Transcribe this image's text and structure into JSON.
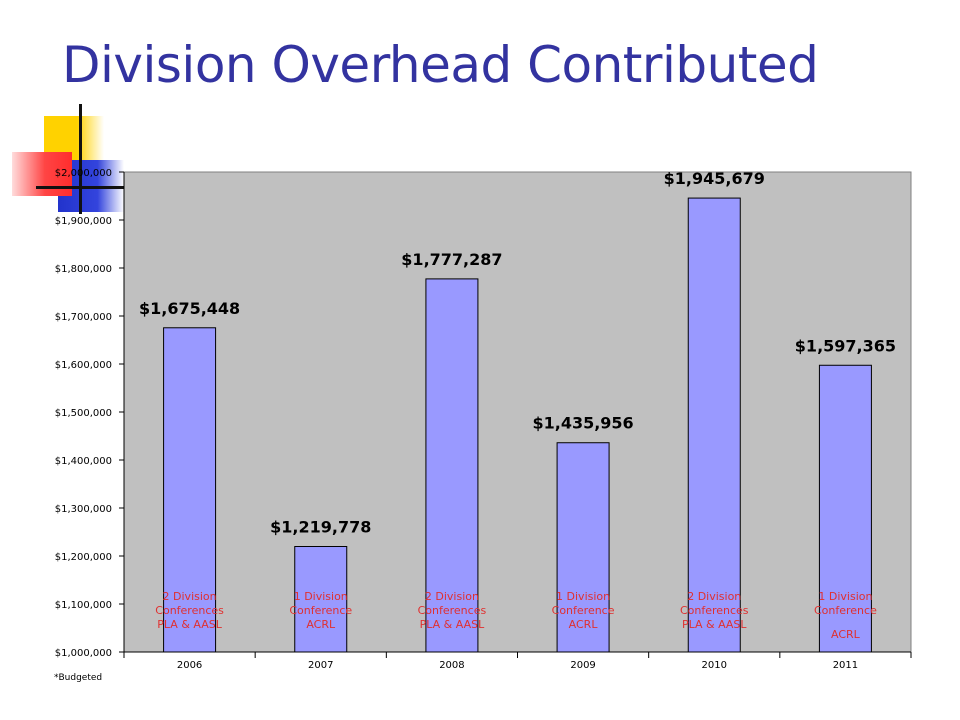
{
  "slide": {
    "title": "Division Overhead Contributed",
    "footnote": "*Budgeted"
  },
  "chart_data": {
    "type": "bar",
    "categories": [
      "2006",
      "2007",
      "2008",
      "2009",
      "2010",
      "2011"
    ],
    "values": [
      1675448,
      1219778,
      1777287,
      1435956,
      1945679,
      1597365
    ],
    "data_labels": [
      "$1,675,448",
      "$1,219,778",
      "$1,777,287",
      "$1,435,956",
      "$1,945,679",
      "$1,597,365"
    ],
    "annotations": [
      [
        "2 Division",
        "Conferences",
        "PLA & AASL"
      ],
      [
        "1 Division",
        "Conference",
        "ACRL"
      ],
      [
        "2 Division",
        "Conferences",
        "PLA & AASL"
      ],
      [
        "1 Division",
        "Conference",
        "ACRL"
      ],
      [
        "2 Division",
        "Conferences",
        "PLA & AASL"
      ],
      [
        "1 Division",
        "Conference",
        "ACRL"
      ]
    ],
    "ylim": [
      1000000,
      2000000
    ],
    "yticks": [
      1000000,
      1100000,
      1200000,
      1300000,
      1400000,
      1500000,
      1600000,
      1700000,
      1800000,
      1900000,
      2000000
    ],
    "ytick_labels": [
      "$1,000,000",
      "$1,100,000",
      "$1,200,000",
      "$1,300,000",
      "$1,400,000",
      "$1,500,000",
      "$1,600,000",
      "$1,700,000",
      "$1,800,000",
      "$1,900,000",
      "$2,000,000"
    ],
    "xlabel": "",
    "ylabel": "",
    "grid": false,
    "legend": "none",
    "colors": {
      "bar": "#9999ff",
      "bar_edge": "#000000",
      "plot_bg": "#c0c0c0",
      "annotation": "#e03030"
    }
  }
}
